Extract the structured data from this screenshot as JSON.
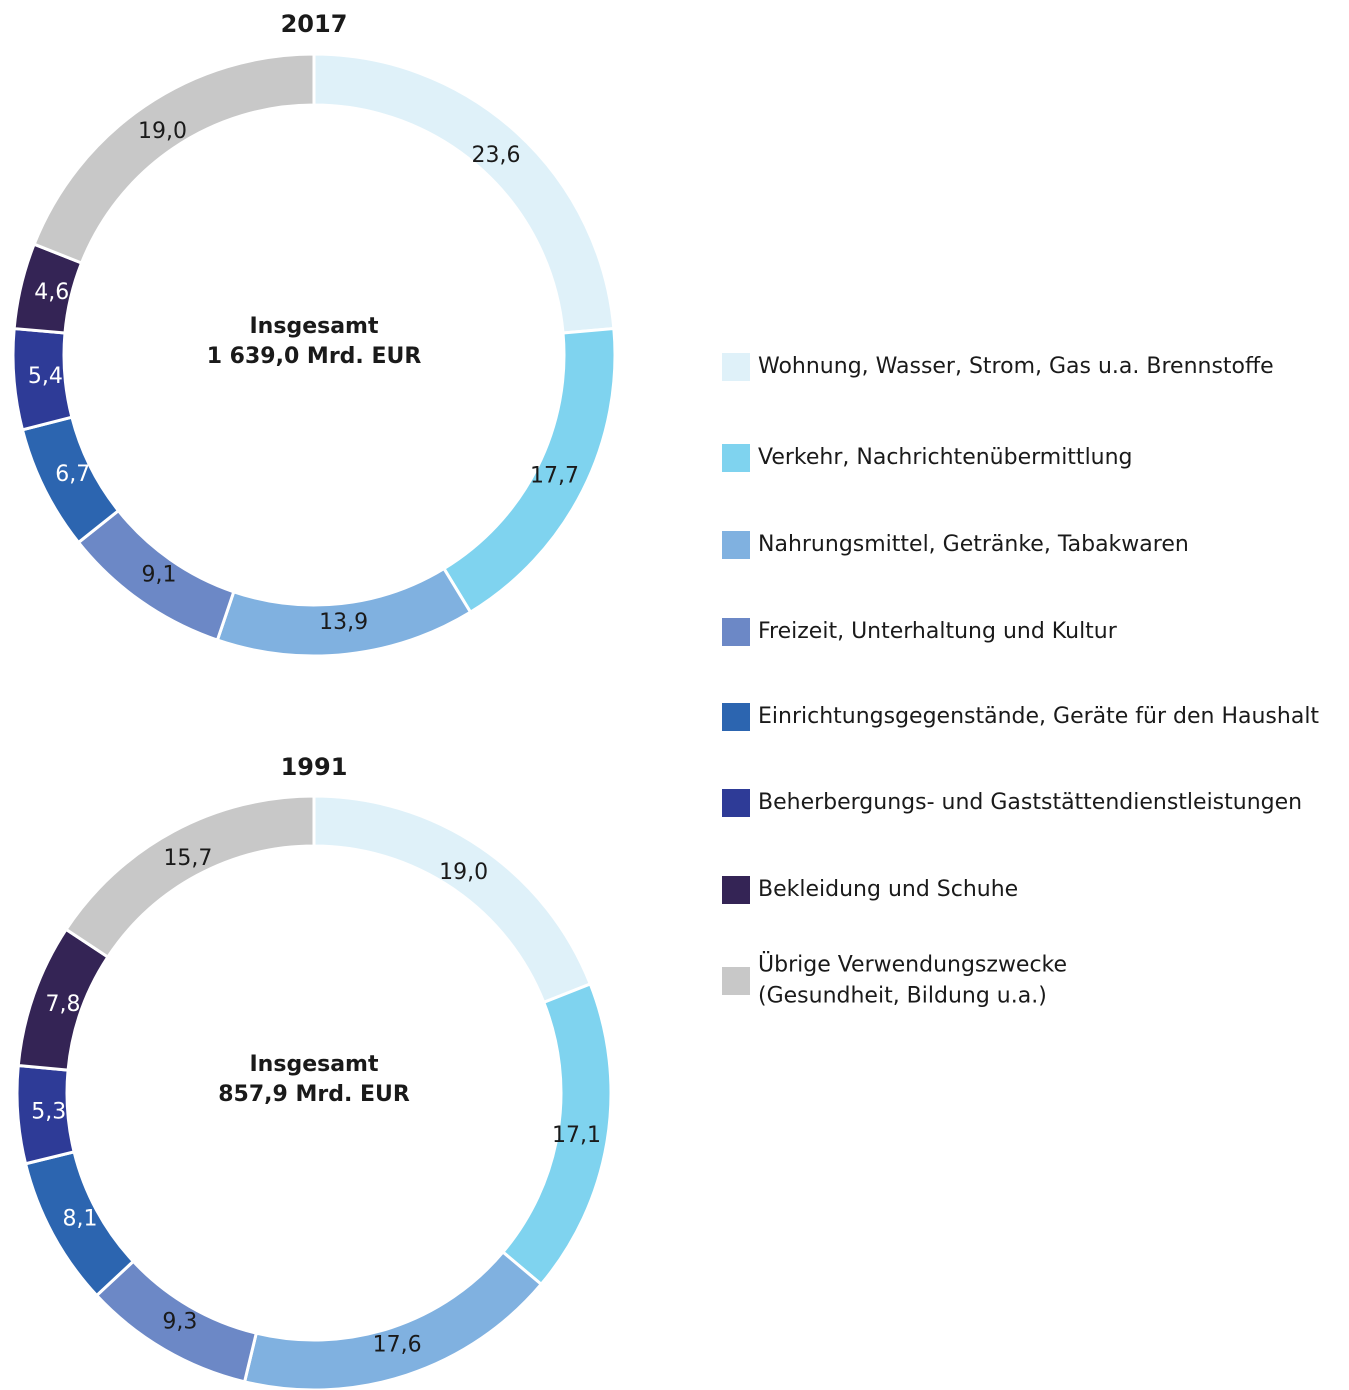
{
  "chart_data": [
    {
      "type": "donut",
      "title": "2017",
      "center_label": [
        "Insgesamt",
        "1 639,0 Mrd. EUR"
      ],
      "values": [
        23.6,
        17.7,
        13.9,
        9.1,
        6.7,
        5.4,
        4.6,
        19.0
      ],
      "value_labels": [
        "23,6",
        "17,7",
        "13,9",
        "9,1",
        "6,7",
        "5,4",
        "4,6",
        "19,0"
      ]
    },
    {
      "type": "donut",
      "title": "1991",
      "center_label": [
        "Insgesamt",
        "857,9 Mrd. EUR"
      ],
      "values": [
        19.0,
        17.1,
        17.6,
        9.3,
        8.1,
        5.3,
        7.8,
        15.7
      ],
      "value_labels": [
        "19,0",
        "17,1",
        "17,6",
        "9,3",
        "8,1",
        "5,3",
        "7,8",
        "15,7"
      ]
    }
  ],
  "legend": {
    "items": [
      {
        "lines": [
          "Wohnung, Wasser, Strom, Gas u.a. Brennstoffe"
        ],
        "color": "#dff1f9"
      },
      {
        "lines": [
          "Verkehr, Nachrichtenübermittlung"
        ],
        "color": "#7fd3ef"
      },
      {
        "lines": [
          "Nahrungsmittel, Getränke, Tabakwaren"
        ],
        "color": "#80b1e0"
      },
      {
        "lines": [
          "Freizeit, Unterhaltung und Kultur"
        ],
        "color": "#6c88c6"
      },
      {
        "lines": [
          "Einrichtungsgegenstände, Geräte für den Haushalt"
        ],
        "color": "#2c65b0"
      },
      {
        "lines": [
          "Beherbergungs- und Gaststättendienstleistungen"
        ],
        "color": "#2e3b97"
      },
      {
        "lines": [
          "Bekleidung und Schuhe"
        ],
        "color": "#342455"
      },
      {
        "lines": [
          "Übrige Verwendungszwecke",
          "(Gesundheit, Bildung u.a.)"
        ],
        "color": "#c8c8c8"
      }
    ]
  }
}
